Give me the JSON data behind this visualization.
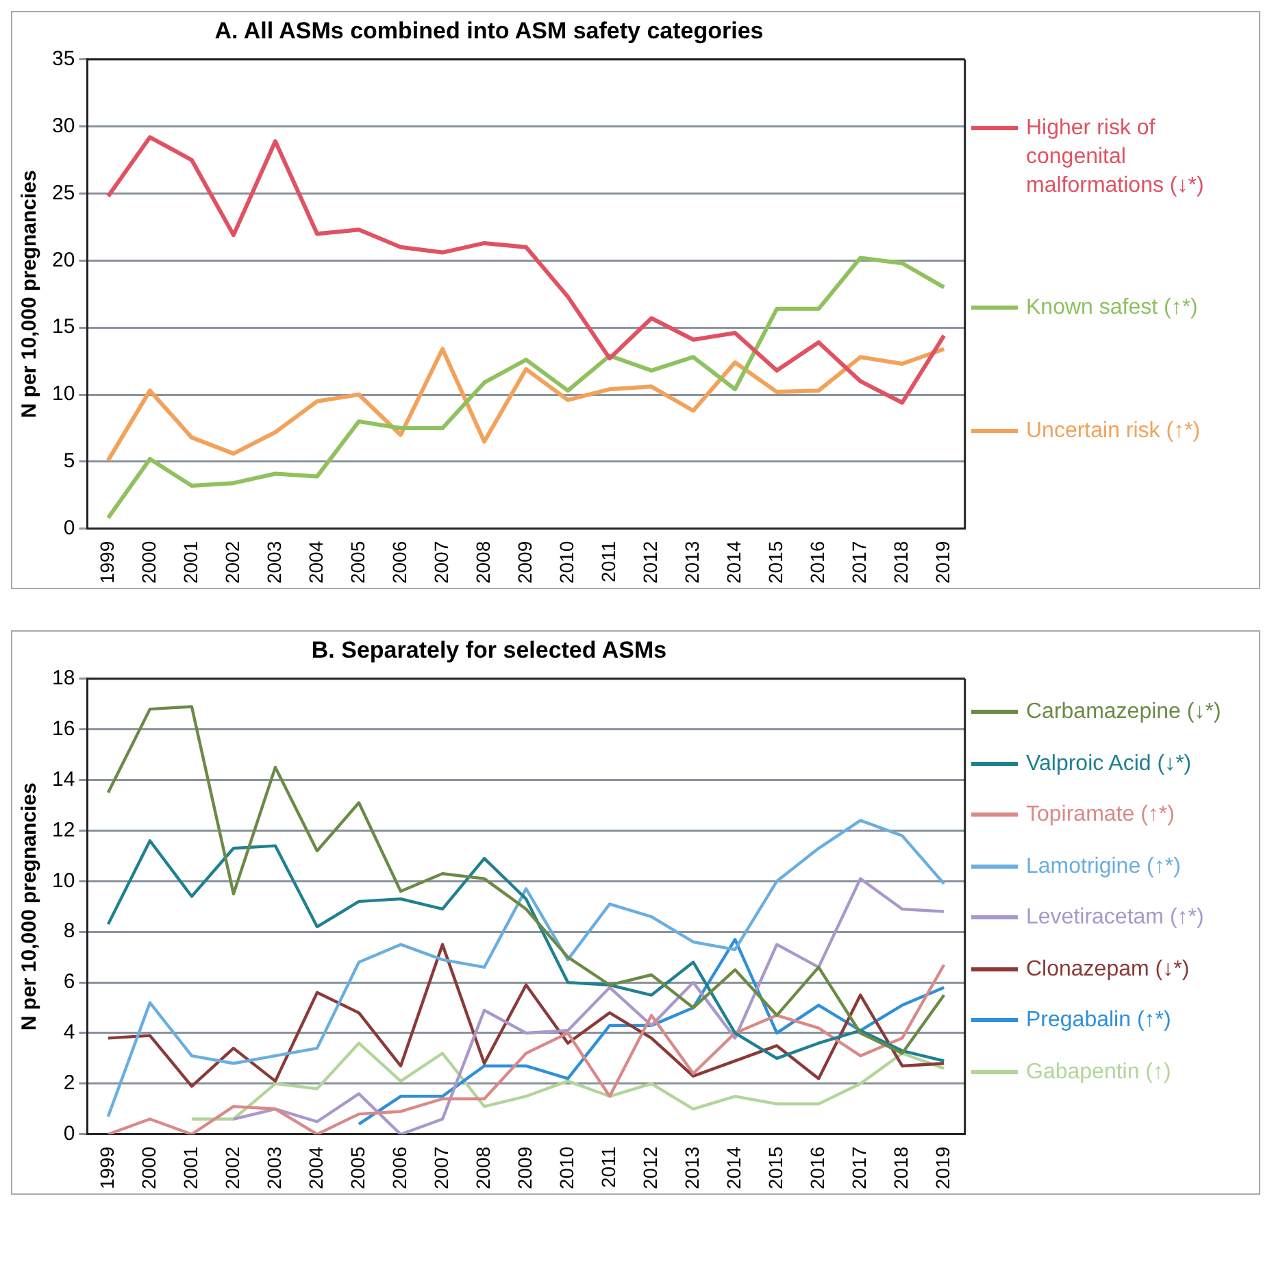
{
  "chart_data": [
    {
      "type": "line",
      "title": "A. All ASMs combined into ASM safety categories",
      "ylabel": "N per 10,000 pregnancies",
      "categories": [
        "1999",
        "2000",
        "2001",
        "2002",
        "2003",
        "2004",
        "2005",
        "2006",
        "2007",
        "2008",
        "2009",
        "2010",
        "2011",
        "2012",
        "2013",
        "2014",
        "2015",
        "2016",
        "2017",
        "2018",
        "2019"
      ],
      "ylim": [
        0,
        35
      ],
      "yticks": [
        0,
        5,
        10,
        15,
        20,
        25,
        30,
        35
      ],
      "grid": "y",
      "legend": "right",
      "marker": "none",
      "series": [
        {
          "name": "Higher risk of congenital malformations (↓*)",
          "color": "#e05262",
          "values": [
            24.8,
            29.2,
            27.5,
            21.9,
            28.9,
            22.0,
            22.3,
            21.0,
            20.6,
            21.3,
            21.0,
            17.3,
            12.7,
            15.7,
            14.1,
            14.6,
            11.8,
            13.9,
            11.0,
            9.4,
            14.4
          ]
        },
        {
          "name": "Known safest (↑*)",
          "color": "#8fc15f",
          "values": [
            0.8,
            5.2,
            3.2,
            3.4,
            4.1,
            3.9,
            8.0,
            7.5,
            7.5,
            10.9,
            12.6,
            10.3,
            12.9,
            11.8,
            12.8,
            10.4,
            16.4,
            16.4,
            20.2,
            19.8,
            18.0
          ]
        },
        {
          "name": "Uncertain risk (↑*)",
          "color": "#f2a25a",
          "values": [
            5.1,
            10.3,
            6.8,
            5.6,
            7.2,
            9.5,
            10.0,
            7.0,
            13.4,
            6.5,
            11.9,
            9.6,
            10.4,
            10.6,
            8.8,
            12.4,
            10.2,
            10.3,
            12.8,
            12.3,
            13.4
          ]
        }
      ]
    },
    {
      "type": "line",
      "title": "B. Separately for selected ASMs",
      "ylabel": "N per 10,000 pregnancies",
      "categories": [
        "1999",
        "2000",
        "2001",
        "2002",
        "2003",
        "2004",
        "2005",
        "2006",
        "2007",
        "2008",
        "2009",
        "2010",
        "2011",
        "2012",
        "2013",
        "2014",
        "2015",
        "2016",
        "2017",
        "2018",
        "2019"
      ],
      "ylim": [
        0,
        18
      ],
      "yticks": [
        0,
        2,
        4,
        6,
        8,
        10,
        12,
        14,
        16,
        18
      ],
      "grid": "y",
      "legend": "right",
      "marker": "none",
      "series": [
        {
          "name": "Carbamazepine (↓*)",
          "color": "#6b8a45",
          "values": [
            13.5,
            16.8,
            16.9,
            9.5,
            14.5,
            11.2,
            13.1,
            9.6,
            10.3,
            10.1,
            8.9,
            7.0,
            5.9,
            6.3,
            5.0,
            6.5,
            4.7,
            6.6,
            4.0,
            3.2,
            5.5
          ]
        },
        {
          "name": "Valproic Acid (↓*)",
          "color": "#1f8090",
          "values": [
            8.3,
            11.6,
            9.4,
            11.3,
            11.4,
            8.2,
            9.2,
            9.3,
            8.9,
            10.9,
            9.3,
            6.0,
            5.9,
            5.5,
            6.8,
            4.0,
            3.0,
            3.6,
            4.1,
            3.3,
            2.9
          ]
        },
        {
          "name": "Topiramate (↑*)",
          "color": "#d98a88",
          "values": [
            0,
            0.6,
            0,
            1.1,
            1.0,
            0,
            0.8,
            0.9,
            1.4,
            1.4,
            3.2,
            4.0,
            1.5,
            4.7,
            2.4,
            4.0,
            4.7,
            4.2,
            3.1,
            3.8,
            6.7
          ]
        },
        {
          "name": "Lamotrigine (↑*)",
          "color": "#6aaee0",
          "values": [
            0.7,
            5.2,
            3.1,
            2.8,
            3.1,
            3.4,
            6.8,
            7.5,
            6.9,
            6.6,
            9.7,
            6.9,
            9.1,
            8.6,
            7.6,
            7.3,
            10.0,
            11.3,
            12.4,
            11.8,
            9.9
          ]
        },
        {
          "name": "Levetiracetam (↑*)",
          "color": "#a898cc",
          "values": [
            null,
            null,
            null,
            0.6,
            1.0,
            0.5,
            1.6,
            0,
            0.6,
            4.9,
            4.0,
            4.1,
            5.8,
            4.3,
            6.0,
            3.8,
            7.5,
            6.6,
            10.1,
            8.9,
            8.8
          ]
        },
        {
          "name": "Clonazepam (↓*)",
          "color": "#8a3a38",
          "values": [
            3.8,
            3.9,
            1.9,
            3.4,
            2.1,
            5.6,
            4.8,
            2.7,
            7.5,
            2.8,
            5.9,
            3.6,
            4.8,
            3.8,
            2.3,
            2.9,
            3.5,
            2.2,
            5.5,
            2.7,
            2.8
          ]
        },
        {
          "name": "Pregabalin (↑*)",
          "color": "#2f8fd8",
          "values": [
            null,
            null,
            null,
            null,
            null,
            null,
            0.4,
            1.5,
            1.5,
            2.7,
            2.7,
            2.2,
            4.3,
            4.3,
            5.0,
            7.7,
            4.0,
            5.1,
            4.1,
            5.1,
            5.8
          ]
        },
        {
          "name": "Gabapentin (↑)",
          "color": "#b2d59a",
          "values": [
            null,
            null,
            0.6,
            0.6,
            2.0,
            1.8,
            3.6,
            2.1,
            3.2,
            1.1,
            1.5,
            2.1,
            1.5,
            2.0,
            1.0,
            1.5,
            1.2,
            1.2,
            2.0,
            3.2,
            2.6
          ]
        }
      ]
    }
  ]
}
